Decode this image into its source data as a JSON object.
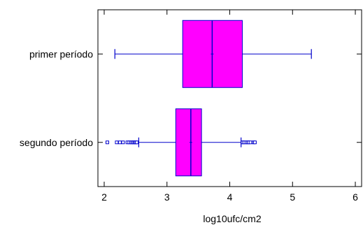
{
  "chart_data": {
    "type": "box",
    "xlabel": "log10ufc/cm2",
    "ylabel": "",
    "title": "",
    "xlim": [
      1.9,
      6.1
    ],
    "xticks": [
      "2",
      "3",
      "4",
      "5",
      "6"
    ],
    "categories": [
      "primer período",
      "segundo período"
    ],
    "boxes": [
      {
        "category": "primer período",
        "whisker_low": 2.17,
        "q1": 3.25,
        "median": 3.72,
        "mean": 3.72,
        "q3": 4.2,
        "whisker_high": 5.3,
        "outliers": []
      },
      {
        "category": "segundo período",
        "whisker_low": 2.55,
        "q1": 3.14,
        "median": 3.38,
        "mean": 3.38,
        "q3": 3.55,
        "whisker_high": 4.18,
        "outliers": [
          2.05,
          2.2,
          2.25,
          2.3,
          2.37,
          2.4,
          2.43,
          2.45,
          2.47,
          2.49,
          2.5,
          2.52,
          4.2,
          4.22,
          4.25,
          4.28,
          4.3,
          4.33,
          4.38,
          4.4
        ]
      }
    ],
    "colors": {
      "box_fill": "#ff00ff",
      "lines": "#0000cc",
      "axis": "#000000"
    },
    "grid": false,
    "legend": "none"
  }
}
